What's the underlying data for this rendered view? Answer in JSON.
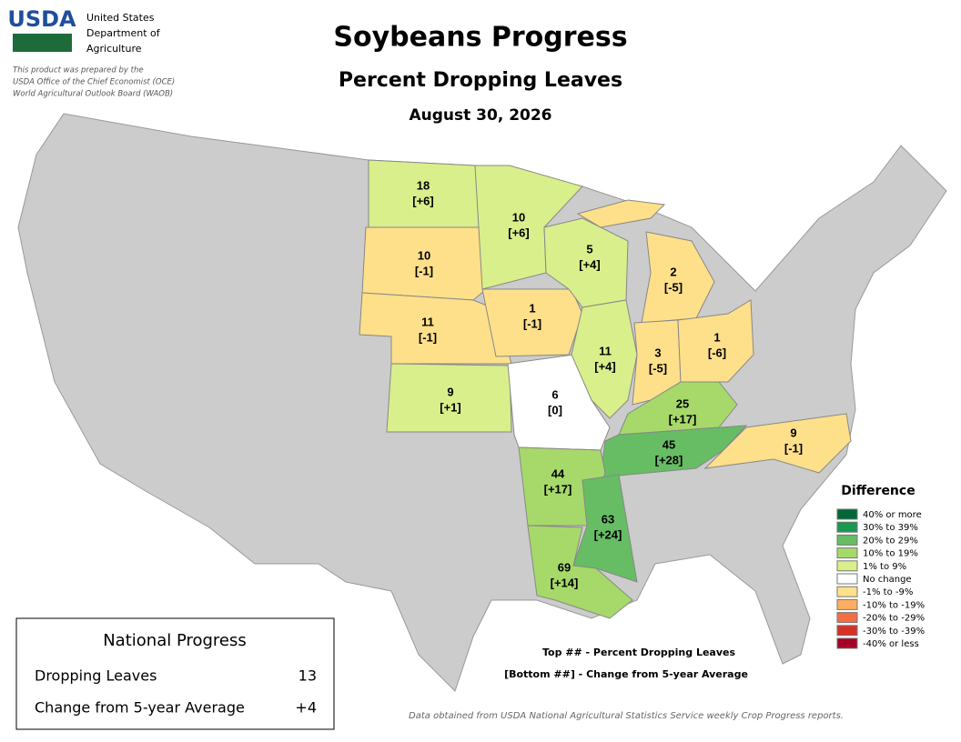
{
  "header": {
    "agency": [
      "United States",
      "Department of",
      "Agriculture"
    ],
    "logo": "USDA",
    "disclaimer": [
      "This product was prepared by the",
      "USDA Office of the Chief Economist (OCE)",
      "World Agricultural Outlook Board (WAOB)"
    ],
    "title": "Soybeans Progress",
    "subtitle": "Percent Dropping Leaves",
    "date": "August 30, 2026"
  },
  "states": [
    {
      "value": 18,
      "change": "[+6]",
      "color": "#d9ef8b"
    },
    {
      "value": 10,
      "change": "[-1]",
      "color": "#fee08b"
    },
    {
      "value": 11,
      "change": "[-1]",
      "color": "#fee08b"
    },
    {
      "value": 9,
      "change": "[+1]",
      "color": "#d9ef8b"
    },
    {
      "value": 10,
      "change": "[+6]",
      "color": "#d9ef8b"
    },
    {
      "value": 1,
      "change": "[-1]",
      "color": "#fee08b"
    },
    {
      "value": 6,
      "change": "[0]",
      "color": "#ffffff"
    },
    {
      "value": 5,
      "change": "[+4]",
      "color": "#d9ef8b"
    },
    {
      "value": 11,
      "change": "[+4]",
      "color": "#d9ef8b"
    },
    {
      "value": 2,
      "change": "[-5]",
      "color": "#fee08b"
    },
    {
      "value": 3,
      "change": "[-5]",
      "color": "#fee08b"
    },
    {
      "value": 1,
      "change": "[-6]",
      "color": "#fee08b"
    },
    {
      "value": 25,
      "change": "[+17]",
      "color": "#a6d96a"
    },
    {
      "value": 45,
      "change": "[+28]",
      "color": "#66bd63"
    },
    {
      "value": 9,
      "change": "[-1]",
      "color": "#fee08b"
    },
    {
      "value": 44,
      "change": "[+17]",
      "color": "#a6d96a"
    },
    {
      "value": 63,
      "change": "[+24]",
      "color": "#66bd63"
    },
    {
      "value": 69,
      "change": "[+14]",
      "color": "#a6d96a"
    }
  ],
  "legend": {
    "title": "Difference",
    "items": [
      {
        "label": "40% or more",
        "color": "#006837"
      },
      {
        "label": "30% to 39%",
        "color": "#1a9850"
      },
      {
        "label": "20% to 29%",
        "color": "#66bd63"
      },
      {
        "label": "10% to 19%",
        "color": "#a6d96a"
      },
      {
        "label": "1% to 9%",
        "color": "#d9ef8b"
      },
      {
        "label": "No change",
        "color": "#ffffff"
      },
      {
        "label": "-1% to -9%",
        "color": "#fee08b"
      },
      {
        "label": "-10% to -19%",
        "color": "#fdae61"
      },
      {
        "label": "-20% to -29%",
        "color": "#f46d43"
      },
      {
        "label": "-30% to -39%",
        "color": "#d73027"
      },
      {
        "label": "-40% or less",
        "color": "#a50026"
      }
    ]
  },
  "national": {
    "title": "National Progress",
    "rows": [
      {
        "label": "Dropping Leaves",
        "value": 13
      },
      {
        "label": "Change from 5-year Average",
        "value": "+4"
      }
    ]
  },
  "notes": [
    "Top ## - Percent Dropping Leaves",
    "[Bottom ##] - Change from 5-year Average"
  ],
  "source": "Data obtained from USDA National Agricultural Statistics Service weekly Crop Progress reports."
}
